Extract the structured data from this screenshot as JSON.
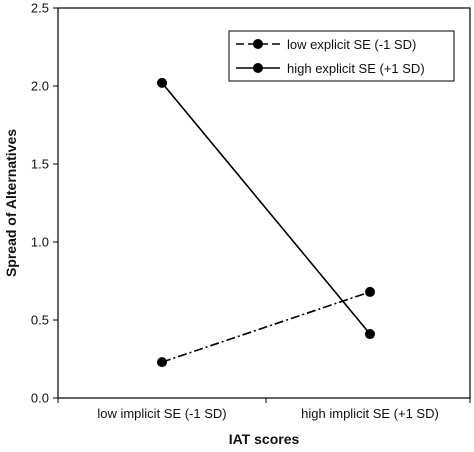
{
  "chart_data": {
    "type": "line",
    "title": "",
    "xlabel": "IAT scores",
    "ylabel": "Spread of Alternatives",
    "categories": [
      "low implicit SE (-1 SD)",
      "high implicit SE (+1 SD)"
    ],
    "ylim": [
      0,
      2.5
    ],
    "yticks": [
      "0.0",
      "0.5",
      "1.0",
      "1.5",
      "2.0",
      "2.5"
    ],
    "grid": false,
    "legend_position": "top-right",
    "series": [
      {
        "name": "low explicit SE (-1 SD)",
        "values": [
          0.23,
          0.68
        ],
        "line_style": "dash-dot",
        "color": "#000000"
      },
      {
        "name": "high explicit SE (+1 SD)",
        "values": [
          2.02,
          0.41
        ],
        "line_style": "solid",
        "color": "#000000"
      }
    ]
  }
}
